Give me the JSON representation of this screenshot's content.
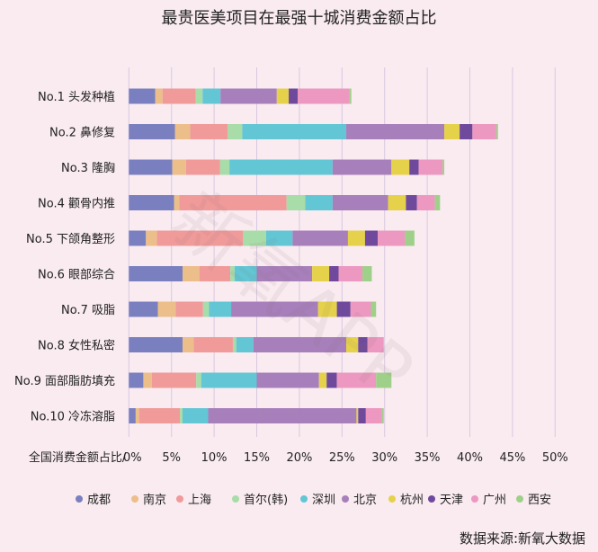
{
  "chart_data": {
    "type": "bar",
    "orientation": "horizontal",
    "stacked": true,
    "title": "最贵医美项目在最强十城消费金额占比",
    "xlabel": "全国消费金额占比/",
    "ylabel": "",
    "xlim": [
      0,
      50
    ],
    "xticks": [
      "0%",
      "5%",
      "10%",
      "15%",
      "20%",
      "25%",
      "30%",
      "35%",
      "40%",
      "45%",
      "50%"
    ],
    "grid": true,
    "legend_position": "bottom",
    "categories": [
      "No.1 头发种植",
      "No.2 鼻修复",
      "No.3 隆胸",
      "No.4 颧骨内推",
      "No.5 下颌角整形",
      "No.6 眼部综合",
      "No.7 吸脂",
      "No.8 女性私密",
      "No.9 面部脂肪填充",
      "No.10 冷冻溶脂"
    ],
    "series": [
      {
        "name": "成都",
        "color": "#7a7fc0",
        "values": [
          3.1,
          5.4,
          5.1,
          5.3,
          2.0,
          6.3,
          3.4,
          6.3,
          1.7,
          0.8
        ]
      },
      {
        "name": "南京",
        "color": "#ecbe8a",
        "values": [
          0.85,
          1.8,
          1.6,
          0.6,
          1.3,
          2.0,
          2.1,
          1.3,
          1.0,
          0.4
        ]
      },
      {
        "name": "上海",
        "color": "#f09a9a",
        "values": [
          3.9,
          4.4,
          4.0,
          12.6,
          10.1,
          3.6,
          3.2,
          4.6,
          5.2,
          4.8
        ]
      },
      {
        "name": "首尔(韩)",
        "color": "#a8dca8",
        "values": [
          0.8,
          1.7,
          1.1,
          2.2,
          2.7,
          0.5,
          0.7,
          0.4,
          0.6,
          0.3
        ]
      },
      {
        "name": "深圳",
        "color": "#62c6d4",
        "values": [
          2.1,
          12.2,
          12.1,
          3.2,
          3.1,
          2.6,
          2.6,
          2.0,
          6.5,
          3.0
        ]
      },
      {
        "name": "北京",
        "color": "#a77fbb",
        "values": [
          6.6,
          11.5,
          6.9,
          6.5,
          6.5,
          6.5,
          10.2,
          10.9,
          7.3,
          17.4
        ]
      },
      {
        "name": "杭州",
        "color": "#e5d24a",
        "values": [
          1.4,
          1.8,
          2.1,
          2.1,
          2.0,
          2.0,
          2.2,
          1.4,
          0.9,
          0.2
        ]
      },
      {
        "name": "天津",
        "color": "#6f4a9c",
        "values": [
          1.05,
          1.5,
          1.1,
          1.3,
          1.5,
          1.1,
          1.6,
          1.1,
          1.2,
          0.9
        ]
      },
      {
        "name": "广州",
        "color": "#ec98c0",
        "values": [
          6.05,
          2.8,
          2.8,
          2.1,
          3.2,
          2.8,
          2.4,
          1.9,
          4.6,
          1.9
        ]
      },
      {
        "name": "西安",
        "color": "#9fd08a",
        "values": [
          0.25,
          0.2,
          0.2,
          0.6,
          1.1,
          1.1,
          0.6,
          0.0,
          1.8,
          0.2
        ]
      }
    ]
  },
  "source": "数据来源:新氧大数据",
  "watermark": "新氧APP"
}
